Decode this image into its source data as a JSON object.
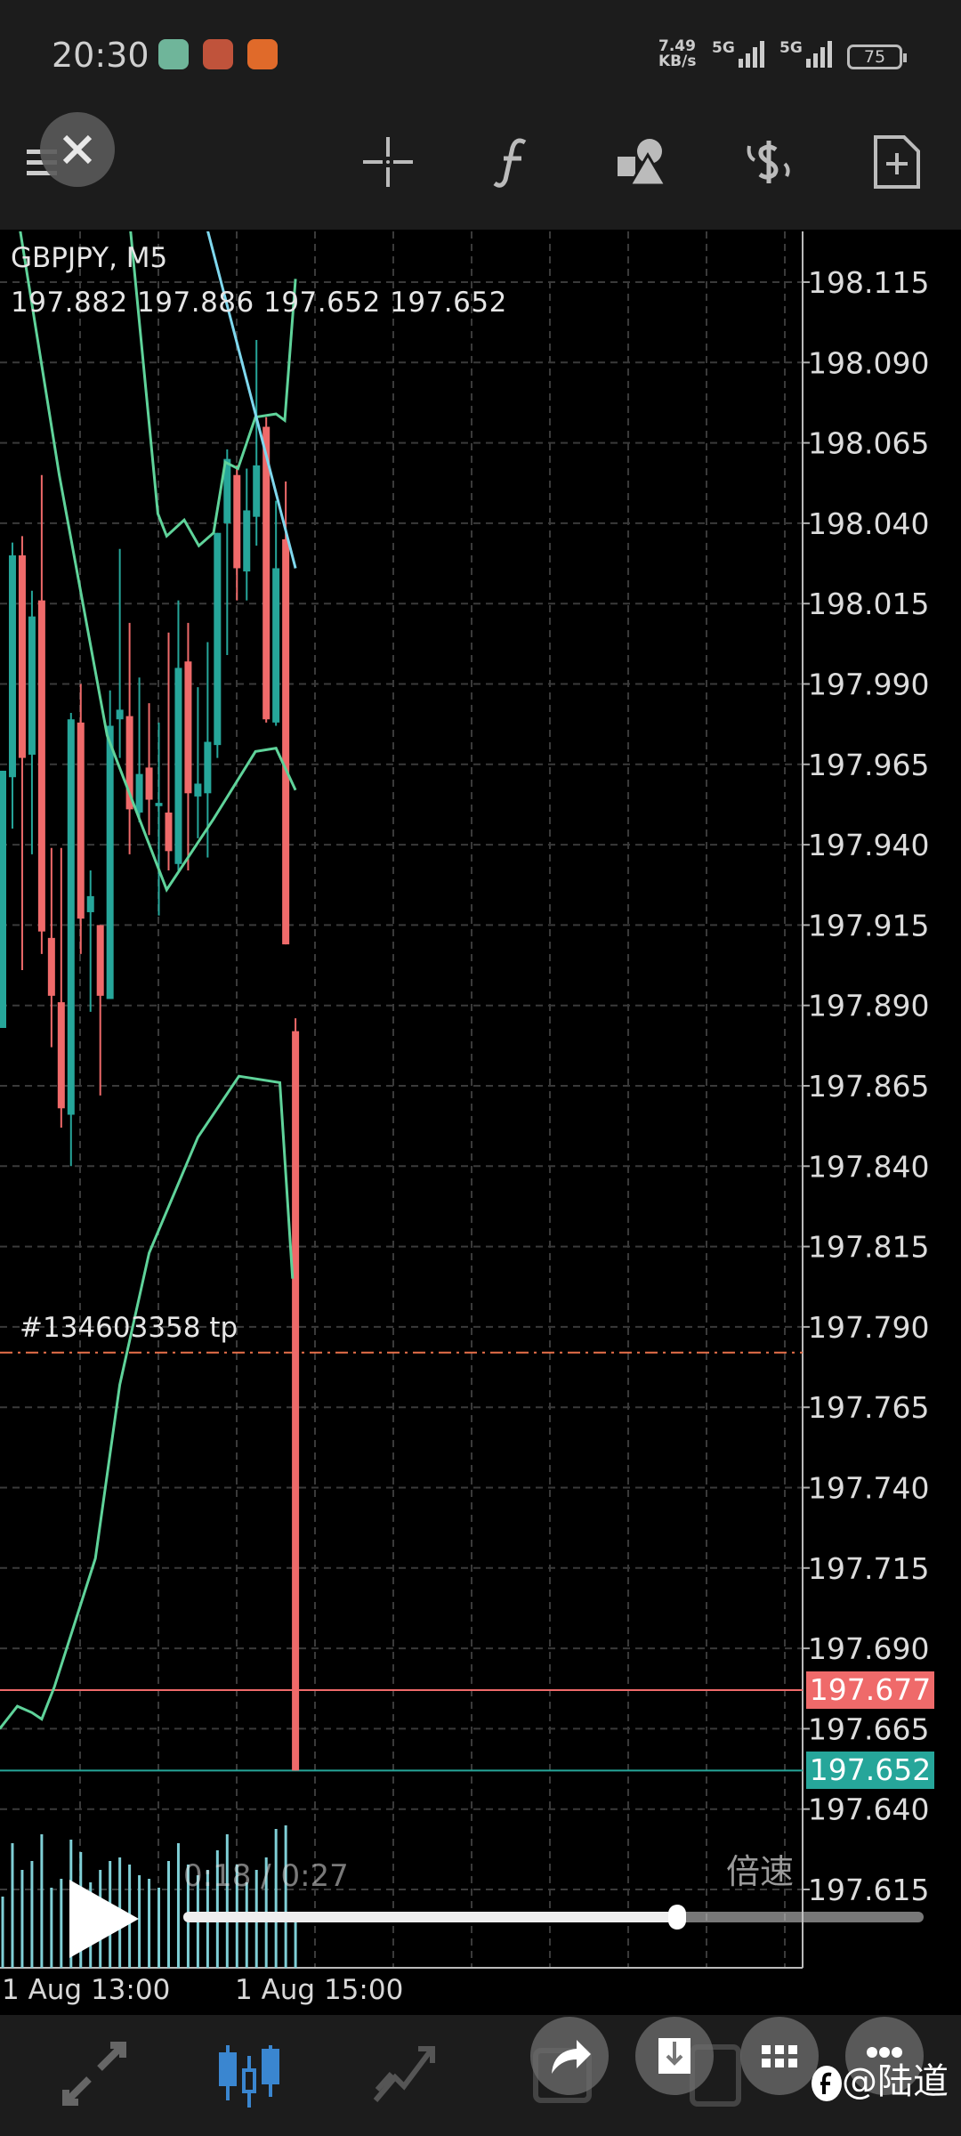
{
  "status_bar": {
    "time": "20:30",
    "net_speed": "7.49",
    "net_unit": "KB/s",
    "sim1": "5G",
    "sim2": "5G",
    "battery": "75"
  },
  "toolbar": {
    "icons": [
      "menu-icon",
      "close-icon",
      "crosshair-icon",
      "function-icon",
      "objects-icon",
      "trade-icon",
      "new-order-icon"
    ]
  },
  "chart_header": {
    "symbol": "GBPJPY, M5",
    "ohlc": "197.882 197.886 197.652 197.652"
  },
  "order_label": "#134603358 tp",
  "price_tags": {
    "ask": "197.677",
    "bid": "197.652",
    "ask_color": "#ef6a6a",
    "bid_color": "#26a69a"
  },
  "chart_data": {
    "type": "candlestick",
    "y_ticks": [
      "198.115",
      "198.090",
      "198.065",
      "198.040",
      "198.015",
      "197.990",
      "197.965",
      "197.940",
      "197.915",
      "197.890",
      "197.865",
      "197.840",
      "197.815",
      "197.790",
      "197.765",
      "197.740",
      "197.715",
      "197.690",
      "197.665",
      "197.640",
      "197.615"
    ],
    "ylim": [
      197.591,
      198.131
    ],
    "x_ticks": [
      "1 Aug 13:00",
      "1 Aug 15:00"
    ],
    "grid": true,
    "bull_color": "#26a69a",
    "bear_color": "#ef6a6a",
    "candles": [
      [
        197.883,
        197.963,
        197.883,
        197.963
      ],
      [
        197.961,
        198.034,
        197.945,
        198.03
      ],
      [
        198.03,
        198.036,
        197.901,
        197.967
      ],
      [
        197.968,
        198.019,
        197.937,
        198.011
      ],
      [
        198.016,
        198.055,
        197.906,
        197.913
      ],
      [
        197.911,
        197.939,
        197.877,
        197.893
      ],
      [
        197.891,
        197.939,
        197.852,
        197.858
      ],
      [
        197.856,
        197.981,
        197.84,
        197.979
      ],
      [
        197.978,
        197.99,
        197.906,
        197.917
      ],
      [
        197.919,
        197.932,
        197.888,
        197.924
      ],
      [
        197.915,
        197.915,
        197.862,
        197.893
      ],
      [
        197.892,
        197.988,
        197.892,
        197.977
      ],
      [
        197.979,
        198.032,
        197.967,
        197.982
      ],
      [
        197.98,
        198.009,
        197.937,
        197.951
      ],
      [
        197.95,
        197.992,
        197.947,
        197.962
      ],
      [
        197.964,
        197.984,
        197.943,
        197.954
      ],
      [
        197.952,
        197.978,
        197.918,
        197.953
      ],
      [
        197.95,
        198.006,
        197.932,
        197.938
      ],
      [
        197.934,
        198.016,
        197.932,
        197.995
      ],
      [
        197.997,
        198.009,
        197.932,
        197.956
      ],
      [
        197.955,
        197.989,
        197.942,
        197.959
      ],
      [
        197.956,
        198.003,
        197.936,
        197.972
      ],
      [
        197.971,
        198.037,
        197.967,
        198.037
      ],
      [
        198.04,
        198.063,
        197.999,
        198.06
      ],
      [
        198.055,
        198.058,
        198.016,
        198.026
      ],
      [
        198.025,
        198.057,
        198.016,
        198.044
      ],
      [
        198.042,
        198.097,
        198.033,
        198.058
      ],
      [
        198.07,
        198.073,
        197.978,
        197.979
      ],
      [
        197.978,
        198.047,
        197.977,
        198.026
      ],
      [
        198.035,
        198.053,
        197.909,
        197.909
      ],
      [
        197.882,
        197.886,
        197.652,
        197.652
      ]
    ],
    "indicator_lines": [
      {
        "color": "#5fd39a",
        "points": [
          [
            2.8,
            198.131
          ],
          [
            6.8,
            198.055
          ],
          [
            11.7,
            197.974
          ],
          [
            17.8,
            197.926
          ],
          [
            22.6,
            197.948
          ],
          [
            26.9,
            197.969
          ],
          [
            29,
            197.97
          ],
          [
            31,
            197.957
          ]
        ]
      },
      {
        "color": "#5fd39a",
        "points": [
          [
            14.1,
            198.131
          ],
          [
            16.9,
            198.043
          ],
          [
            17.8,
            198.036
          ],
          [
            19.6,
            198.041
          ],
          [
            21.1,
            198.033
          ],
          [
            22.6,
            198.037
          ],
          [
            23.8,
            198.059
          ],
          [
            25.1,
            198.057
          ],
          [
            26.9,
            198.073
          ],
          [
            29,
            198.074
          ],
          [
            29.9,
            198.072
          ],
          [
            31,
            198.116
          ]
        ]
      },
      {
        "color": "#5fd39a",
        "points": [
          [
            0.7,
            197.665
          ],
          [
            2.5,
            197.672
          ],
          [
            4,
            197.67
          ],
          [
            5,
            197.668
          ],
          [
            6.3,
            197.678
          ],
          [
            10.5,
            197.718
          ],
          [
            13,
            197.772
          ],
          [
            16,
            197.813
          ],
          [
            21,
            197.849
          ],
          [
            25.2,
            197.868
          ],
          [
            29.4,
            197.866
          ],
          [
            30.7,
            197.805
          ]
        ]
      },
      {
        "color": "#7fd8ee",
        "points": [
          [
            22,
            198.131
          ],
          [
            26.9,
            198.074
          ],
          [
            31,
            198.026
          ]
        ]
      }
    ],
    "tp_level": 197.782,
    "ask_level": 197.677,
    "bid_level": 197.652,
    "volume": [
      40,
      70,
      55,
      60,
      75,
      45,
      50,
      72,
      65,
      48,
      55,
      60,
      62,
      58,
      52,
      50,
      45,
      60,
      70,
      58,
      52,
      55,
      66,
      75,
      58,
      48,
      55,
      62,
      78,
      80,
      30
    ]
  },
  "video": {
    "current": "0:18",
    "separator": " / ",
    "duration": "0:27",
    "progress": 0.667,
    "speed_label": "倍速"
  },
  "bottom_nav": {
    "items": [
      "quotes-icon",
      "chart-icon",
      "trade-icon",
      "history-icon",
      "messages-icon"
    ]
  },
  "watermark": "@陆道"
}
